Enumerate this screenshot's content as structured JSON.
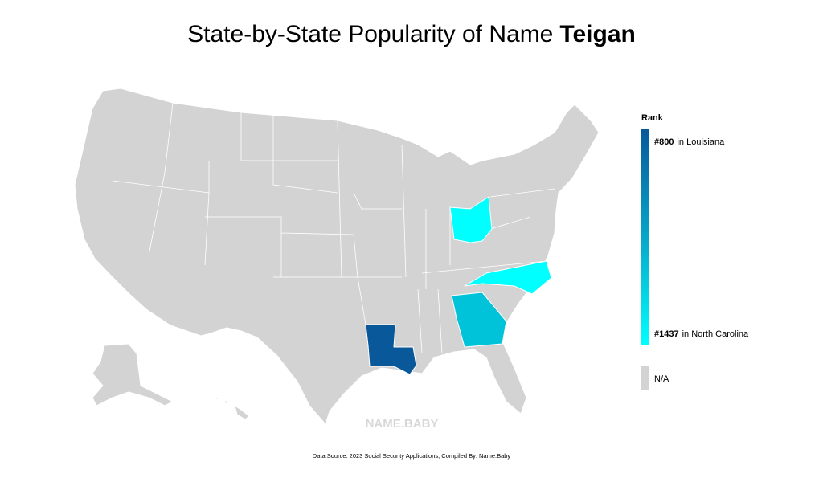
{
  "title": {
    "text": "State-by-State Popularity of Name",
    "name": "Teigan"
  },
  "legend": {
    "title": "Rank",
    "high": {
      "rank": "#800",
      "state": "in Louisiana"
    },
    "low": {
      "rank": "#1437",
      "state": "in North Carolina"
    },
    "na": "N/A"
  },
  "watermark": "NAME.BABY",
  "footer": "Data Source: 2023 Social Security Applications; Compiled By: Name.Baby"
}
